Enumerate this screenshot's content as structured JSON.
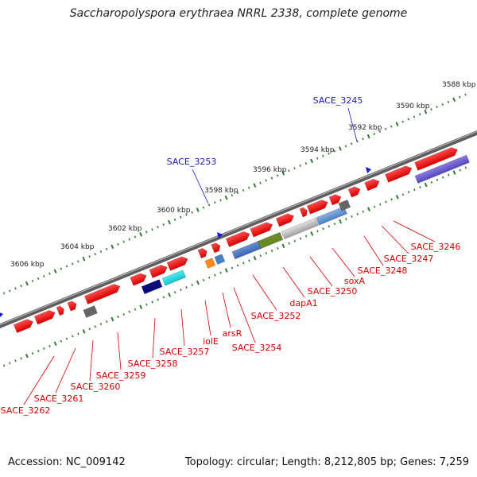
{
  "title": "Saccharopolyspora erythraea NRRL 2338, complete genome",
  "footer": {
    "accession": "Accession: NC_009142",
    "meta": "Topology: circular; Length: 8,212,805 bp; Genes: 7,259"
  },
  "ruler_ticks": [
    "3588 kbp",
    "3590 kbp",
    "3592 kbp",
    "3594 kbp",
    "3596 kbp",
    "3598 kbp",
    "3600 kbp",
    "3602 kbp",
    "3604 kbp",
    "3606 kbp"
  ],
  "gene_labels_forward": [
    "SACE_3245",
    "SACE_3253"
  ],
  "gene_labels_reverse": [
    "SACE_3246",
    "SACE_3247",
    "SACE_3248",
    "soxA",
    "SACE_3250",
    "dapA1",
    "SACE_3252",
    "SACE_3254",
    "arsR",
    "iolE",
    "SACE_3257",
    "SACE_3258",
    "SACE_3259",
    "SACE_3260",
    "SACE_3261",
    "SACE_3262"
  ],
  "colors": {
    "cds": "#ff1a1a",
    "forward_marker": "#0a1ad6",
    "label_reverse": "#d40000",
    "label_forward": "#1a1acc",
    "backbone": "#777777",
    "ticks": "#2e7d2e"
  }
}
